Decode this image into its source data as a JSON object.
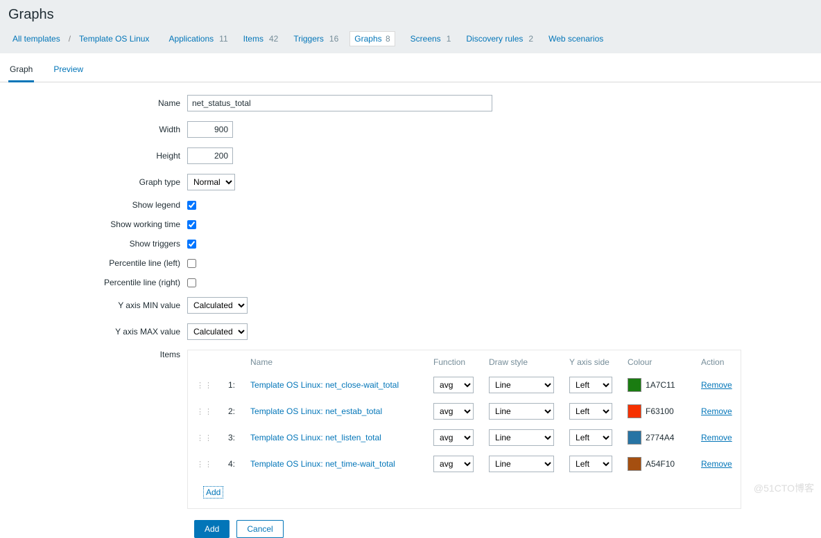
{
  "header": {
    "title": "Graphs"
  },
  "nav": {
    "all_templates": "All templates",
    "separator": "/",
    "template_name": "Template OS Linux",
    "links": [
      {
        "label": "Applications",
        "count": "11"
      },
      {
        "label": "Items",
        "count": "42"
      },
      {
        "label": "Triggers",
        "count": "16"
      },
      {
        "label": "Graphs",
        "count": "8",
        "current": true
      },
      {
        "label": "Screens",
        "count": "1"
      },
      {
        "label": "Discovery rules",
        "count": "2"
      },
      {
        "label": "Web scenarios",
        "count": ""
      }
    ]
  },
  "tabs": {
    "graph": "Graph",
    "preview": "Preview"
  },
  "form": {
    "labels": {
      "name": "Name",
      "width": "Width",
      "height": "Height",
      "graph_type": "Graph type",
      "show_legend": "Show legend",
      "show_working_time": "Show working time",
      "show_triggers": "Show triggers",
      "percentile_left": "Percentile line (left)",
      "percentile_right": "Percentile line (right)",
      "y_min": "Y axis MIN value",
      "y_max": "Y axis MAX value",
      "items": "Items"
    },
    "values": {
      "name": "net_status_total",
      "width": "900",
      "height": "200",
      "graph_type": "Normal",
      "show_legend": true,
      "show_working_time": true,
      "show_triggers": true,
      "percentile_left": false,
      "percentile_right": false,
      "y_min": "Calculated",
      "y_max": "Calculated"
    }
  },
  "items_table": {
    "headers": {
      "name": "Name",
      "function": "Function",
      "draw_style": "Draw style",
      "y_side": "Y axis side",
      "colour": "Colour",
      "action": "Action"
    },
    "rows": [
      {
        "idx": "1:",
        "name": "Template OS Linux: net_close-wait_total",
        "function": "avg",
        "draw_style": "Line",
        "y_side": "Left",
        "colour_hex": "1A7C11",
        "swatch": "#1A7C11",
        "action": "Remove"
      },
      {
        "idx": "2:",
        "name": "Template OS Linux: net_estab_total",
        "function": "avg",
        "draw_style": "Line",
        "y_side": "Left",
        "colour_hex": "F63100",
        "swatch": "#F63100",
        "action": "Remove"
      },
      {
        "idx": "3:",
        "name": "Template OS Linux: net_listen_total",
        "function": "avg",
        "draw_style": "Line",
        "y_side": "Left",
        "colour_hex": "2774A4",
        "swatch": "#2774A4",
        "action": "Remove"
      },
      {
        "idx": "4:",
        "name": "Template OS Linux: net_time-wait_total",
        "function": "avg",
        "draw_style": "Line",
        "y_side": "Left",
        "colour_hex": "A54F10",
        "swatch": "#A54F10",
        "action": "Remove"
      }
    ],
    "add_link": "Add"
  },
  "buttons": {
    "add": "Add",
    "cancel": "Cancel"
  },
  "watermark": "@51CTO博客"
}
